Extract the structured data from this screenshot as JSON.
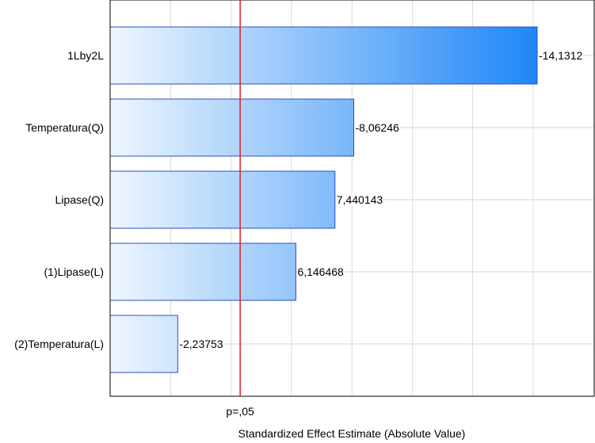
{
  "chart_data": {
    "type": "bar",
    "orientation": "horizontal",
    "categories": [
      "1Lby2L",
      "Temperatura(Q)",
      "Lipase(Q)",
      "(1)Lipase(L)",
      "(2)Temperatura(L)"
    ],
    "values": [
      14.1312,
      8.06246,
      7.440143,
      6.146468,
      2.23753
    ],
    "value_labels": [
      "-14,1312",
      "-8,06246",
      "7,440143",
      "6,146468",
      "-2,23753"
    ],
    "xlabel": "Standardized Effect Estimate (Absolute Value)",
    "xlim": [
      0,
      16
    ],
    "reference_line": {
      "value": 4.303,
      "label": "p=,05",
      "color": "#e0201e"
    },
    "grid": true,
    "colors": {
      "bar_start": "#eef6fe",
      "bar_end": "#1f86f7",
      "bar_border": "#2a4fc4",
      "grid": "#c8c8c8"
    }
  }
}
